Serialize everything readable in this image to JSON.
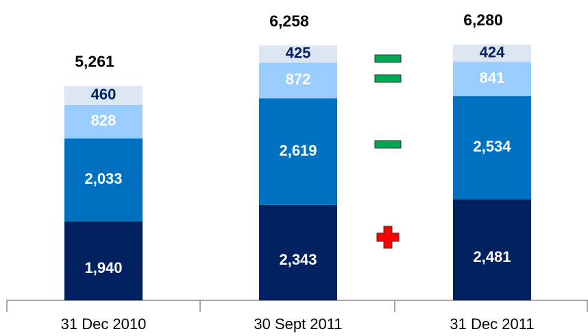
{
  "chart_data": {
    "type": "stacked_bar",
    "categories": [
      "31 Dec 2010",
      "30 Sept 2011",
      "31 Dec 2011"
    ],
    "series": [
      {
        "color": "#002060",
        "label_color": "#ffffff",
        "values": [
          1940,
          2343,
          2481
        ],
        "value_labels": [
          "1,940",
          "2,343",
          "2,481"
        ]
      },
      {
        "color": "#0070c0",
        "label_color": "#ffffff",
        "values": [
          2033,
          2619,
          2534
        ],
        "value_labels": [
          "2,033",
          "2,619",
          "2,534"
        ]
      },
      {
        "color": "#99ccff",
        "label_color": "#ffffff",
        "values": [
          828,
          872,
          841
        ],
        "value_labels": [
          "828",
          "872",
          "841"
        ]
      },
      {
        "color": "#dce6f2",
        "label_color": "#002060",
        "values": [
          460,
          425,
          424
        ],
        "value_labels": [
          "460",
          "425",
          "424"
        ]
      }
    ],
    "totals": {
      "values": [
        5261,
        6258,
        6280
      ],
      "value_labels": [
        "5,261",
        "6,258",
        "6,280"
      ]
    }
  }
}
